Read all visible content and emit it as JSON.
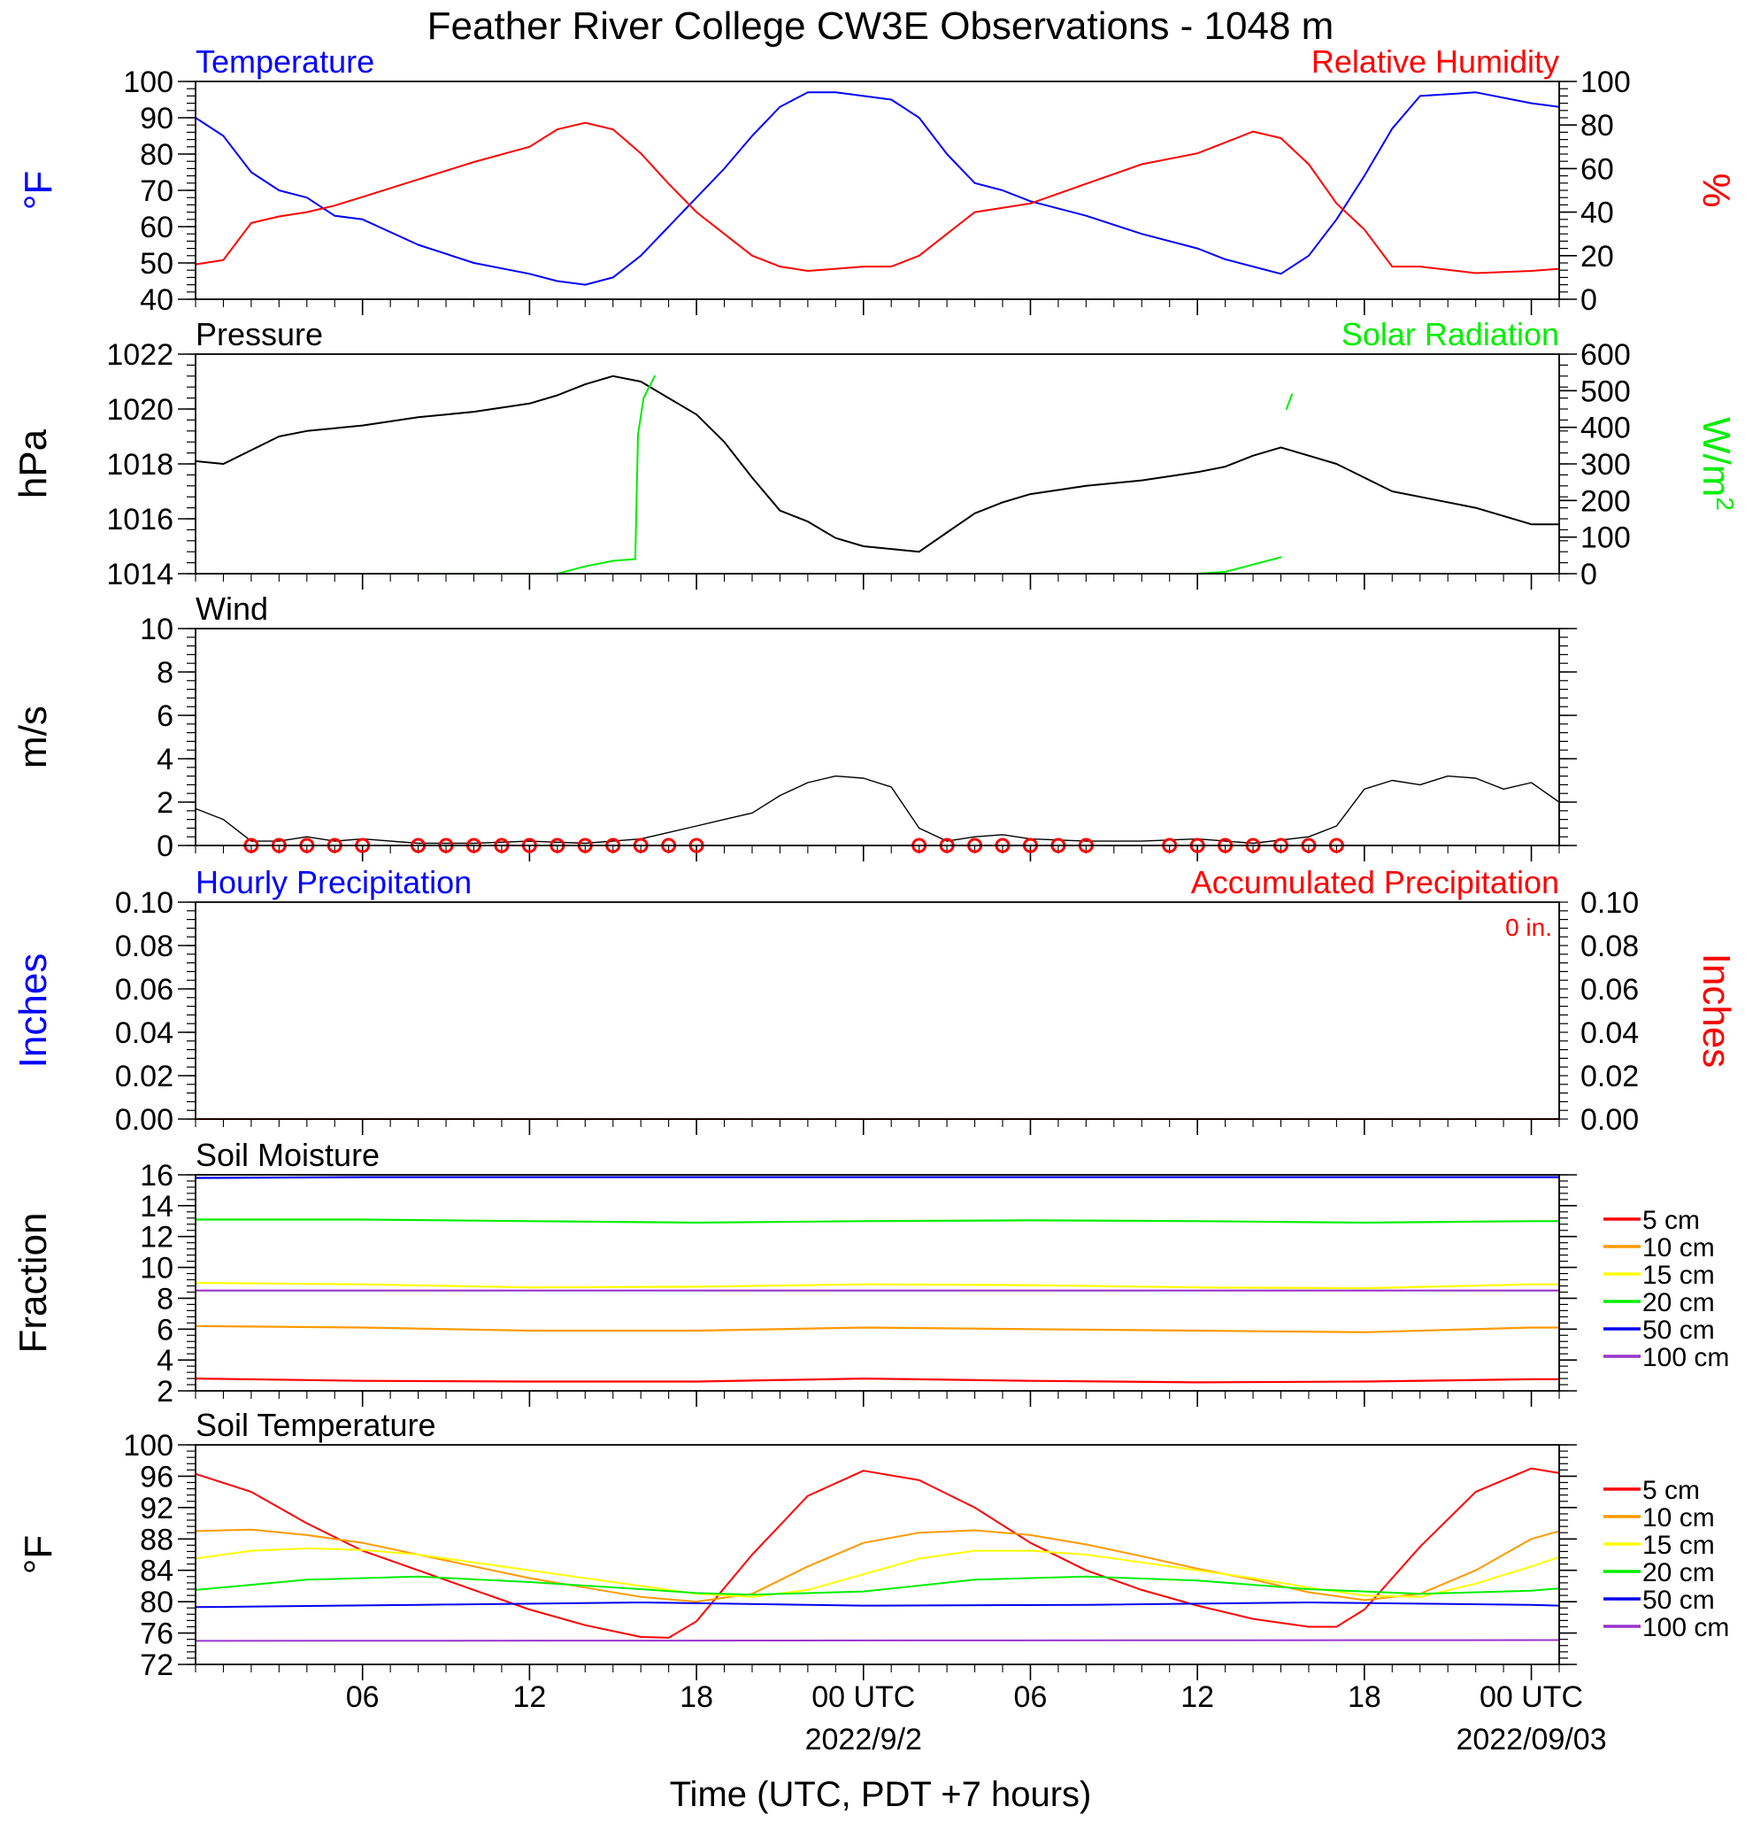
{
  "page": {
    "title": "Feather River College CW3E Observations - 1048 m",
    "xlabel": "Time (UTC, PDT +7 hours)",
    "time_ticks": [
      {
        "t": 6,
        "label": "06"
      },
      {
        "t": 12,
        "label": "12"
      },
      {
        "t": 18,
        "label": "18"
      },
      {
        "t": 24,
        "label": "00 UTC"
      },
      {
        "t": 30,
        "label": "06"
      },
      {
        "t": 36,
        "label": "12"
      },
      {
        "t": 42,
        "label": "18"
      },
      {
        "t": 48,
        "label": "00 UTC"
      }
    ],
    "date_labels": [
      {
        "t": 24,
        "label": "2022/9/2"
      },
      {
        "t": 48,
        "label": "2022/09/03"
      }
    ],
    "colors": {
      "temperature": "#0000ff",
      "humidity": "#ff0000",
      "pressure": "#000000",
      "solar": "#00ee00",
      "wind": "#000000",
      "barbs": "#ff0000",
      "depths": [
        "#ff0000",
        "#ff9900",
        "#ffff00",
        "#00ee00",
        "#0000ee",
        "#9933cc"
      ]
    }
  },
  "chart_data": [
    {
      "id": "temp-rh",
      "type": "line",
      "title_left": "Temperature",
      "title_right": "Relative Humidity",
      "ylabel_left": "°F",
      "ylabel_right": "%",
      "xlim": [
        0,
        49
      ],
      "ylim_left": [
        40,
        100
      ],
      "yticks_left": [
        40,
        50,
        60,
        70,
        80,
        90,
        100
      ],
      "ylim_right": [
        0,
        100
      ],
      "yticks_right": [
        0,
        20,
        40,
        60,
        80,
        100
      ],
      "series": [
        {
          "name": "Temperature",
          "axis": "left",
          "x": [
            0,
            1,
            2,
            3,
            4,
            5,
            6,
            8,
            10,
            12,
            13,
            14,
            15,
            16,
            17,
            18,
            19,
            20,
            21,
            22,
            23,
            24,
            25,
            26,
            27,
            28,
            29,
            30,
            32,
            34,
            36,
            37,
            38,
            39,
            40,
            41,
            42,
            43,
            44,
            46,
            48,
            49
          ],
          "y": [
            90,
            85,
            75,
            70,
            68,
            63,
            62,
            55,
            50,
            47,
            45,
            44,
            46,
            52,
            60,
            68,
            76,
            85,
            93,
            97,
            97,
            96,
            95,
            90,
            80,
            72,
            70,
            67,
            63,
            58,
            54,
            51,
            49,
            47,
            52,
            62,
            74,
            87,
            96,
            97,
            94,
            93
          ]
        },
        {
          "name": "Relative Humidity",
          "axis": "right",
          "x": [
            0,
            1,
            2,
            3,
            4,
            5,
            6,
            8,
            10,
            12,
            13,
            14,
            15,
            16,
            17,
            18,
            19,
            20,
            21,
            22,
            23,
            24,
            25,
            26,
            27,
            28,
            29,
            30,
            32,
            34,
            36,
            37,
            38,
            39,
            40,
            41,
            42,
            43,
            44,
            46,
            48,
            49
          ],
          "y": [
            16,
            18,
            35,
            38,
            40,
            43,
            47,
            55,
            63,
            70,
            78,
            81,
            78,
            67,
            53,
            40,
            30,
            20,
            15,
            13,
            14,
            15,
            15,
            20,
            30,
            40,
            42,
            44,
            53,
            62,
            67,
            72,
            77,
            74,
            62,
            44,
            32,
            15,
            15,
            12,
            13,
            14
          ]
        }
      ]
    },
    {
      "id": "pressure-solar",
      "type": "line",
      "title_left": "Pressure",
      "title_right": "Solar Radiation",
      "ylabel_left": "hPa",
      "ylabel_right": "W/m",
      "ylabel_right_sup": "2",
      "xlim": [
        0,
        49
      ],
      "ylim_left": [
        1014,
        1022
      ],
      "yticks_left": [
        1014,
        1016,
        1018,
        1020,
        1022
      ],
      "ylim_right": [
        0,
        600
      ],
      "yticks_right": [
        0,
        100,
        200,
        300,
        400,
        500,
        600
      ],
      "series": [
        {
          "name": "Pressure",
          "axis": "left",
          "x": [
            0,
            1,
            2,
            3,
            4,
            6,
            8,
            10,
            12,
            13,
            14,
            15,
            16,
            17,
            18,
            19,
            20,
            21,
            22,
            23,
            24,
            25,
            26,
            27,
            28,
            29,
            30,
            32,
            34,
            36,
            37,
            38,
            39,
            40,
            41,
            42,
            43,
            44,
            46,
            48,
            49
          ],
          "y": [
            1018.1,
            1018.0,
            1018.5,
            1019.0,
            1019.2,
            1019.4,
            1019.7,
            1019.9,
            1020.2,
            1020.5,
            1020.9,
            1021.2,
            1021.0,
            1020.4,
            1019.8,
            1018.8,
            1017.5,
            1016.3,
            1015.9,
            1015.3,
            1015.0,
            1014.9,
            1014.8,
            1015.5,
            1016.2,
            1016.6,
            1016.9,
            1017.2,
            1017.4,
            1017.7,
            1017.9,
            1018.3,
            1018.6,
            1018.3,
            1018.0,
            1017.5,
            1017.0,
            1016.8,
            1016.4,
            1015.8,
            1015.8
          ]
        },
        {
          "name": "Solar Radiation",
          "axis": "right",
          "segments": [
            {
              "x": [
                8,
                10,
                12,
                13,
                14,
                15,
                15.8,
                15.9,
                16.1,
                16.5
              ],
              "y": [
                0,
                0,
                0,
                0,
                20,
                35,
                40,
                380,
                480,
                540
              ]
            },
            {
              "x": [
                35,
                36,
                37,
                38,
                39
              ],
              "y": [
                0,
                0,
                5,
                25,
                45
              ]
            },
            {
              "x": [
                39.2,
                39.4
              ],
              "y": [
                450,
                490
              ]
            }
          ]
        }
      ]
    },
    {
      "id": "wind",
      "type": "line",
      "title_left": "Wind",
      "ylabel_left": "m/s",
      "xlim": [
        0,
        49
      ],
      "ylim_left": [
        0,
        10
      ],
      "yticks_left": [
        0,
        2,
        4,
        6,
        8,
        10
      ],
      "series": [
        {
          "name": "Wind",
          "axis": "left",
          "x": [
            0,
            1,
            2,
            3,
            4,
            5,
            6,
            8,
            10,
            12,
            14,
            16,
            17,
            18,
            19,
            20,
            21,
            22,
            23,
            24,
            25,
            26,
            27,
            28,
            29,
            30,
            32,
            34,
            36,
            38,
            40,
            41,
            42,
            43,
            44,
            45,
            46,
            47,
            48,
            49
          ],
          "y": [
            1.7,
            1.2,
            0.2,
            0.2,
            0.4,
            0.2,
            0.3,
            0.1,
            0.1,
            0.2,
            0.1,
            0.3,
            0.6,
            0.9,
            1.2,
            1.5,
            2.3,
            2.9,
            3.2,
            3.1,
            2.7,
            0.8,
            0.2,
            0.4,
            0.5,
            0.3,
            0.2,
            0.2,
            0.3,
            0.1,
            0.4,
            0.9,
            2.6,
            3.0,
            2.8,
            3.2,
            3.1,
            2.6,
            2.9,
            2.0
          ]
        }
      ],
      "calm_hours": [
        2,
        3,
        4,
        5,
        6,
        8,
        9,
        10,
        11,
        12,
        13,
        14,
        15,
        16,
        17,
        18,
        26,
        27,
        28,
        29,
        30,
        31,
        32,
        35,
        36,
        37,
        38,
        39,
        40,
        41
      ]
    },
    {
      "id": "precip",
      "type": "line",
      "title_left": "Hourly Precipitation",
      "title_right": "Accumulated Precipitation",
      "annotation": "0 in.",
      "ylabel_left": "Inches",
      "ylabel_right": "Inches",
      "xlim": [
        0,
        49
      ],
      "ylim_left": [
        0,
        0.1
      ],
      "yticks_left": [
        0.0,
        0.02,
        0.04,
        0.06,
        0.08,
        0.1
      ],
      "ytick_labels_left": [
        "0.00",
        "0.02",
        "0.04",
        "0.06",
        "0.08",
        "0.10"
      ],
      "ytick_labels_right": [
        "0.00",
        "0.02",
        "0.04",
        "0.06",
        "0.08",
        "0.10"
      ],
      "series": [
        {
          "name": "Hourly Precipitation",
          "axis": "left",
          "x": [
            0,
            49
          ],
          "y": [
            0,
            0
          ]
        },
        {
          "name": "Accumulated Precipitation",
          "axis": "left",
          "x": [
            0,
            49
          ],
          "y": [
            0,
            0
          ]
        }
      ]
    },
    {
      "id": "soil-moisture",
      "type": "line",
      "title_left": "Soil Moisture",
      "ylabel_left": "Fraction",
      "xlim": [
        0,
        49
      ],
      "ylim_left": [
        2,
        16
      ],
      "yticks_left": [
        2,
        4,
        6,
        8,
        10,
        12,
        14,
        16
      ],
      "legend": [
        "5 cm",
        "10 cm",
        "15 cm",
        "20 cm",
        "50 cm",
        "100 cm"
      ],
      "series": [
        {
          "name": "5 cm",
          "axis": "left",
          "x": [
            0,
            6,
            12,
            18,
            24,
            30,
            36,
            42,
            48,
            49
          ],
          "y": [
            2.8,
            2.65,
            2.6,
            2.6,
            2.8,
            2.65,
            2.55,
            2.6,
            2.75,
            2.75
          ]
        },
        {
          "name": "10 cm",
          "axis": "left",
          "x": [
            0,
            6,
            12,
            18,
            24,
            30,
            36,
            42,
            48,
            49
          ],
          "y": [
            6.2,
            6.1,
            5.9,
            5.9,
            6.1,
            6.0,
            5.9,
            5.8,
            6.1,
            6.1
          ]
        },
        {
          "name": "15 cm",
          "axis": "left",
          "x": [
            0,
            6,
            12,
            18,
            24,
            30,
            36,
            42,
            48,
            49
          ],
          "y": [
            9.0,
            8.9,
            8.7,
            8.75,
            8.9,
            8.85,
            8.7,
            8.65,
            8.9,
            8.9
          ]
        },
        {
          "name": "20 cm",
          "axis": "left",
          "x": [
            0,
            6,
            12,
            18,
            24,
            30,
            36,
            42,
            48,
            49
          ],
          "y": [
            13.1,
            13.1,
            13.0,
            12.9,
            13.0,
            13.05,
            13.0,
            12.9,
            13.0,
            13.0
          ]
        },
        {
          "name": "50 cm",
          "axis": "left",
          "x": [
            0,
            6,
            12,
            18,
            24,
            30,
            36,
            42,
            48,
            49
          ],
          "y": [
            15.8,
            15.85,
            15.85,
            15.85,
            15.85,
            15.85,
            15.85,
            15.85,
            15.85,
            15.85
          ]
        },
        {
          "name": "100 cm",
          "axis": "left",
          "x": [
            0,
            49
          ],
          "y": [
            8.5,
            8.5
          ]
        }
      ]
    },
    {
      "id": "soil-temperature",
      "type": "line",
      "title_left": "Soil Temperature",
      "ylabel_left": "°F",
      "xlim": [
        0,
        49
      ],
      "ylim_left": [
        72,
        100
      ],
      "yticks_left": [
        72,
        76,
        80,
        84,
        88,
        92,
        96,
        100
      ],
      "legend": [
        "5 cm",
        "10 cm",
        "15 cm",
        "20 cm",
        "50 cm",
        "100 cm"
      ],
      "series": [
        {
          "name": "5 cm",
          "axis": "left",
          "x": [
            0,
            2,
            4,
            6,
            8,
            10,
            12,
            14,
            16,
            17,
            18,
            20,
            22,
            24,
            26,
            28,
            30,
            32,
            34,
            36,
            38,
            40,
            41,
            42,
            44,
            46,
            48,
            49
          ],
          "y": [
            96.3,
            94,
            90,
            86.5,
            84,
            81.5,
            79,
            77,
            75.5,
            75.4,
            77.5,
            86,
            93.5,
            96.7,
            95.5,
            92,
            87.5,
            84,
            81.5,
            79.5,
            77.8,
            76.8,
            76.8,
            79,
            87,
            94,
            97,
            96.4
          ]
        },
        {
          "name": "10 cm",
          "axis": "left",
          "x": [
            0,
            2,
            4,
            6,
            8,
            10,
            12,
            14,
            16,
            18,
            20,
            22,
            24,
            26,
            28,
            30,
            32,
            34,
            36,
            38,
            40,
            42,
            44,
            46,
            48,
            49
          ],
          "y": [
            89,
            89.2,
            88.5,
            87.5,
            86,
            84.5,
            83,
            81.8,
            80.6,
            80,
            81,
            84.5,
            87.5,
            88.8,
            89.1,
            88.5,
            87.3,
            85.8,
            84.2,
            82.8,
            81.2,
            80.2,
            81,
            84,
            88,
            89
          ]
        },
        {
          "name": "15 cm",
          "axis": "left",
          "x": [
            0,
            2,
            4,
            6,
            8,
            10,
            12,
            14,
            16,
            18,
            20,
            22,
            24,
            26,
            28,
            30,
            32,
            34,
            36,
            38,
            40,
            42,
            44,
            46,
            48,
            49
          ],
          "y": [
            85.5,
            86.5,
            86.8,
            86.6,
            86,
            85,
            84,
            83,
            82,
            81,
            80.6,
            81.5,
            83.5,
            85.5,
            86.5,
            86.5,
            86,
            85,
            84,
            83,
            81.8,
            80.8,
            80.6,
            82.3,
            84.5,
            85.7
          ]
        },
        {
          "name": "20 cm",
          "axis": "left",
          "x": [
            0,
            4,
            8,
            12,
            16,
            18,
            20,
            24,
            28,
            32,
            36,
            40,
            44,
            48,
            49
          ],
          "y": [
            81.5,
            82.8,
            83.2,
            82.5,
            81.6,
            81.1,
            80.9,
            81.3,
            82.8,
            83.2,
            82.7,
            81.6,
            81,
            81.4,
            81.7
          ]
        },
        {
          "name": "50 cm",
          "axis": "left",
          "x": [
            0,
            8,
            16,
            24,
            32,
            40,
            48,
            49
          ],
          "y": [
            79.3,
            79.6,
            79.9,
            79.5,
            79.6,
            79.9,
            79.6,
            79.5
          ]
        },
        {
          "name": "100 cm",
          "axis": "left",
          "x": [
            0,
            49
          ],
          "y": [
            75,
            75.1
          ]
        }
      ]
    }
  ]
}
